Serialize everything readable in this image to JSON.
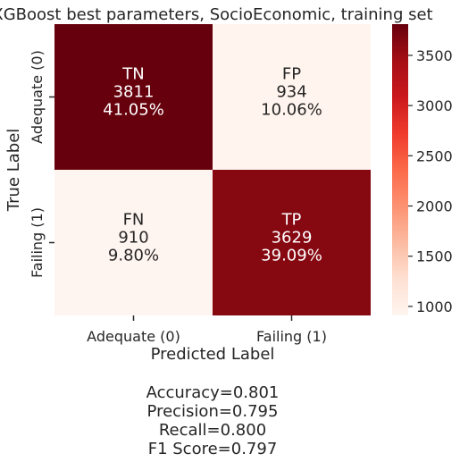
{
  "chart_data": {
    "type": "heatmap",
    "title": "XGBoost best parameters, SocioEconomic, training set",
    "xlabel": "Predicted Label",
    "ylabel": "True Label",
    "x_categories": [
      "Adequate (0)",
      "Failing (1)"
    ],
    "y_categories": [
      "Adequate (0)",
      "Failing (1)"
    ],
    "cells": [
      [
        {
          "label": "TN",
          "count": 3811,
          "percent": "41.05%"
        },
        {
          "label": "FP",
          "count": 934,
          "percent": "10.06%"
        }
      ],
      [
        {
          "label": "FN",
          "count": 910,
          "percent": "9.80%"
        },
        {
          "label": "TP",
          "count": 3629,
          "percent": "39.09%"
        }
      ]
    ],
    "colormap": "Reds",
    "colorbar": {
      "range": [
        910,
        3811
      ],
      "ticks": [
        1000,
        1500,
        2000,
        2500,
        3000,
        3500
      ]
    },
    "cell_text_colors": {
      "dark": "#ffffff",
      "light": "#262626"
    },
    "metrics": [
      "Accuracy=0.801",
      "Precision=0.795",
      "Recall=0.800",
      "F1 Score=0.797"
    ]
  }
}
